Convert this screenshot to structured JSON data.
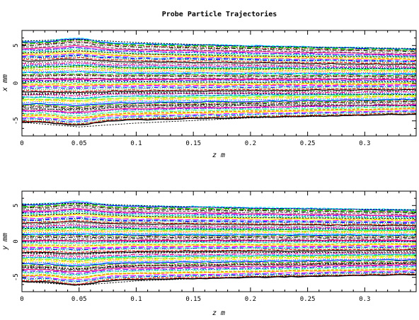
{
  "page_title": "Probe Particle Trajectories",
  "chart_data": [
    {
      "type": "line",
      "title": "Probe Particle Trajectories",
      "xlabel": "z m",
      "ylabel": "x mm",
      "xlim": [
        0,
        0.345
      ],
      "ylim": [
        -7,
        7
      ],
      "xticks": [
        0,
        0.05,
        0.1,
        0.15,
        0.2,
        0.25,
        0.3
      ],
      "xtick_labels": [
        "0",
        "0.05",
        "0.1",
        "0.15",
        "0.2",
        "0.25",
        "0.3"
      ],
      "yticks": [
        -5,
        0,
        5
      ],
      "ytick_labels": [
        "-5",
        "0",
        "5"
      ],
      "grid": false,
      "legend": false,
      "n_trajectories": 80,
      "initial_range": [
        -5.2,
        5.6
      ],
      "final_range": [
        -4.1,
        4.6
      ],
      "series": [
        {
          "x": [
            0,
            0.05,
            0.1,
            0.2,
            0.345
          ],
          "values": [
            -5.2,
            -5.8,
            -5.3,
            -4.6,
            -4.1
          ]
        },
        {
          "x": [
            0,
            0.05,
            0.1,
            0.2,
            0.345
          ],
          "values": [
            -3.4,
            -3.5,
            -3.0,
            -2.9,
            -3.0
          ]
        },
        {
          "x": [
            0,
            0.05,
            0.1,
            0.2,
            0.345
          ],
          "values": [
            -1.5,
            -1.4,
            -1.3,
            -1.4,
            -1.5
          ]
        },
        {
          "x": [
            0,
            0.05,
            0.1,
            0.2,
            0.345
          ],
          "values": [
            0.2,
            0.3,
            0.2,
            0.1,
            0.2
          ]
        },
        {
          "x": [
            0,
            0.05,
            0.1,
            0.2,
            0.345
          ],
          "values": [
            2.1,
            2.3,
            2.0,
            1.9,
            2.0
          ]
        },
        {
          "x": [
            0,
            0.05,
            0.1,
            0.2,
            0.345
          ],
          "values": [
            4.0,
            4.3,
            3.9,
            3.6,
            3.5
          ]
        },
        {
          "x": [
            0,
            0.05,
            0.1,
            0.2,
            0.345
          ],
          "values": [
            5.6,
            5.8,
            5.4,
            4.9,
            4.6
          ]
        }
      ]
    },
    {
      "type": "line",
      "title": "",
      "xlabel": "z m",
      "ylabel": "y mm",
      "xlim": [
        0,
        0.345
      ],
      "ylim": [
        -7,
        7
      ],
      "xticks": [
        0,
        0.05,
        0.1,
        0.15,
        0.2,
        0.25,
        0.3
      ],
      "xtick_labels": [
        "0",
        "0.05",
        "0.1",
        "0.15",
        "0.2",
        "0.25",
        "0.3"
      ],
      "yticks": [
        -5,
        0,
        5
      ],
      "ytick_labels": [
        "-5",
        "0",
        "5"
      ],
      "grid": false,
      "legend": false,
      "n_trajectories": 80,
      "initial_range": [
        -5.6,
        5.2
      ],
      "final_range": [
        -4.6,
        4.4
      ],
      "series": [
        {
          "x": [
            0,
            0.05,
            0.1,
            0.2,
            0.345
          ],
          "values": [
            -5.6,
            -6.1,
            -5.5,
            -4.9,
            -4.6
          ]
        },
        {
          "x": [
            0,
            0.05,
            0.1,
            0.2,
            0.345
          ],
          "values": [
            -3.6,
            -3.8,
            -3.4,
            -3.2,
            -3.1
          ]
        },
        {
          "x": [
            0,
            0.05,
            0.1,
            0.2,
            0.345
          ],
          "values": [
            -1.6,
            -1.7,
            -1.5,
            -1.5,
            -1.6
          ]
        },
        {
          "x": [
            0,
            0.05,
            0.1,
            0.2,
            0.345
          ],
          "values": [
            0.0,
            0.1,
            0.0,
            0.1,
            0.0
          ]
        },
        {
          "x": [
            0,
            0.05,
            0.1,
            0.2,
            0.345
          ],
          "values": [
            1.8,
            2.0,
            1.8,
            1.7,
            1.7
          ]
        },
        {
          "x": [
            0,
            0.05,
            0.1,
            0.2,
            0.345
          ],
          "values": [
            3.6,
            3.9,
            3.5,
            3.3,
            3.2
          ]
        },
        {
          "x": [
            0,
            0.05,
            0.1,
            0.2,
            0.345
          ],
          "values": [
            5.2,
            5.3,
            5.0,
            4.6,
            4.4
          ]
        }
      ]
    }
  ],
  "colors": [
    "#000000",
    "#ff0000",
    "#00cc00",
    "#0000ff",
    "#00ffff",
    "#ff00ff",
    "#ffff00",
    "#ff8000",
    "#80ff00",
    "#00ff80",
    "#0080ff",
    "#8000ff",
    "#ff0080",
    "#555555",
    "#aaaaaa"
  ]
}
